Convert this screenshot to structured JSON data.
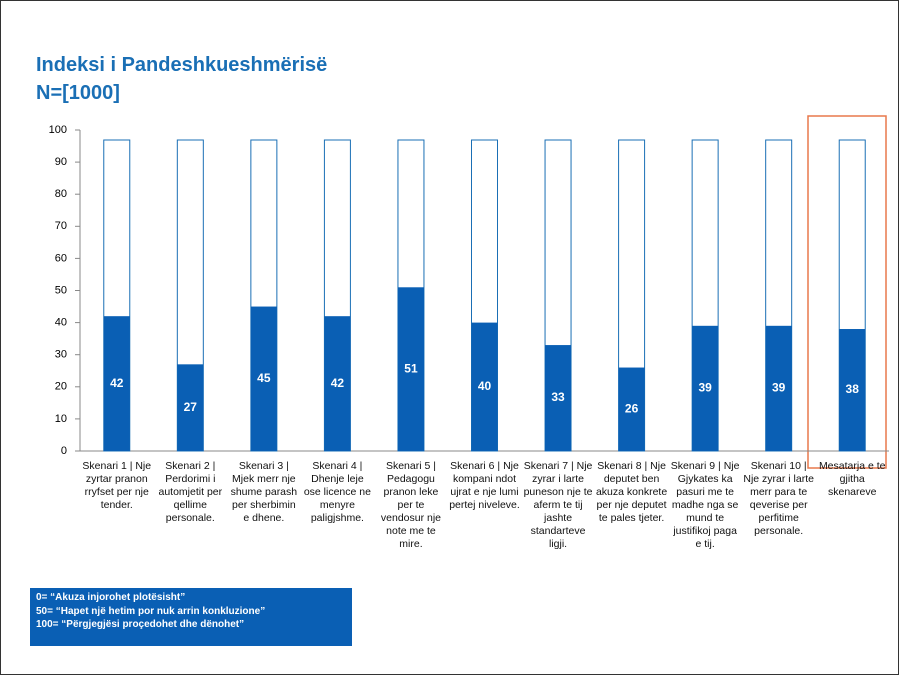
{
  "chart_data": {
    "type": "bar",
    "title": "Indeksi i Pandeshkueshmërisë",
    "subtitle": "N=[1000]",
    "categories": [
      "Skenari 1 | Nje zyrtar pranon rryfset per nje tender.",
      "Skenari 2 | Perdorimi i automjetit per qellime personale.",
      "Skenari 3 | Mjek merr nje shume parash per sherbimin e dhene.",
      "Skenari 4 | Dhenje leje ose licence ne menyre paligjshme.",
      "Skenari 5 | Pedagogu pranon leke per te vendosur nje note me te mire.",
      "Skenari 6 | Nje kompani ndot ujrat e nje lumi pertej niveleve.",
      "Skenari 7 | Nje zyrar i larte puneson nje te aferm te tij jashte standarteve ligji.",
      "Skenari 8 | Nje deputet ben akuza konkrete per nje deputet te pales tjeter.",
      "Skenari 9 | Nje Gjykates ka pasuri me te madhe nga se mund te justifikoj paga e tij.",
      "Skenari 10 | Nje zyrar i larte merr para te qeverise per perfitime personale.",
      "Mesatarja e te gjitha skenareve"
    ],
    "values": [
      42,
      27,
      45,
      42,
      51,
      40,
      33,
      26,
      39,
      39,
      38
    ],
    "color": "#0a5fb4",
    "ylim": [
      0,
      100
    ],
    "yticks": [
      0,
      10,
      20,
      30,
      40,
      50,
      60,
      70,
      80,
      90,
      100
    ],
    "legend_notes": [
      "0= “Akuza injorohet plotësisht”",
      "50= “Hapet një hetim por nuk arrin konkluzione”",
      "100= “Përgjegjësi proçedohet dhe dënohet”"
    ]
  }
}
